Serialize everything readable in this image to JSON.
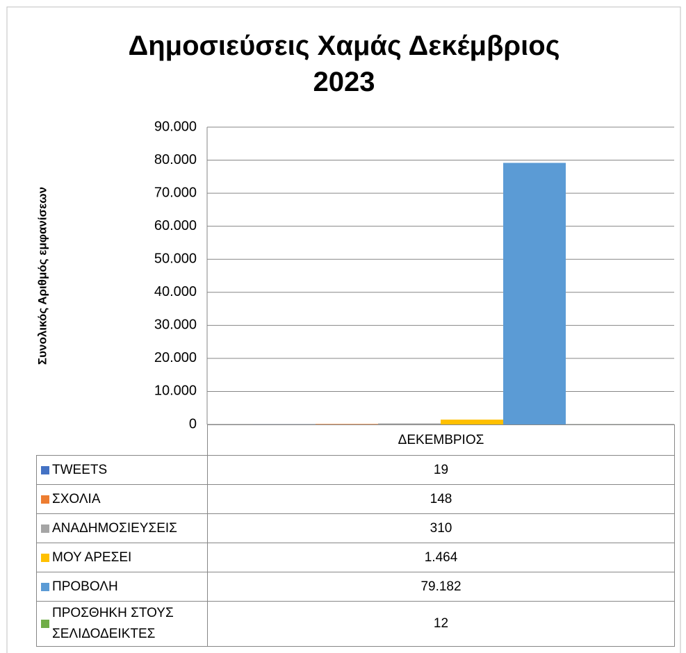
{
  "chart_data": {
    "type": "bar",
    "title": "Δημοσιεύσεις  Χαμάς Δεκέμβριος 2023",
    "y_label": "Συνολικός Αριθμός εμφανίσεων",
    "categories": [
      "ΔΕΚΕΜΒΡΙΟΣ"
    ],
    "series": [
      {
        "name": "TWEETS",
        "color": "#4472c4",
        "values": [
          19
        ]
      },
      {
        "name": "ΣΧΟΛΙΑ",
        "color": "#ed7d31",
        "values": [
          148
        ]
      },
      {
        "name": "ΑΝΑΔΗΜΟΣΙΕΥΣΕΙΣ",
        "color": "#a5a5a5",
        "values": [
          310
        ]
      },
      {
        "name": "ΜΟΥ ΑΡΕΣΕΙ",
        "color": "#ffc000",
        "values": [
          1464
        ],
        "value_labels": [
          "1.464"
        ]
      },
      {
        "name": "ΠΡΟΒΟΛΗ",
        "color": "#5b9bd5",
        "values": [
          79182
        ],
        "value_labels": [
          "79.182"
        ]
      },
      {
        "name": "ΠΡΟΣΘΗΚΗ ΣΤΟΥΣ ΣΕΛΙΔΟΔΕΙΚΤΕΣ",
        "color": "#70ad47",
        "values": [
          12
        ]
      }
    ],
    "ylim": [
      0,
      90000
    ],
    "yticks": [
      0,
      {
        "value": 10000,
        "label": "10.000"
      },
      {
        "value": 20000,
        "label": "20.000"
      },
      {
        "value": 30000,
        "label": "30.000"
      },
      {
        "value": 40000,
        "label": "40.000"
      },
      {
        "value": 50000,
        "label": "50.000"
      },
      {
        "value": 60000,
        "label": "60.000"
      },
      {
        "value": 70000,
        "label": "70.000"
      },
      {
        "value": 80000,
        "label": "80.000"
      },
      {
        "value": 90000,
        "label": "90.000"
      }
    ],
    "grid": true
  }
}
